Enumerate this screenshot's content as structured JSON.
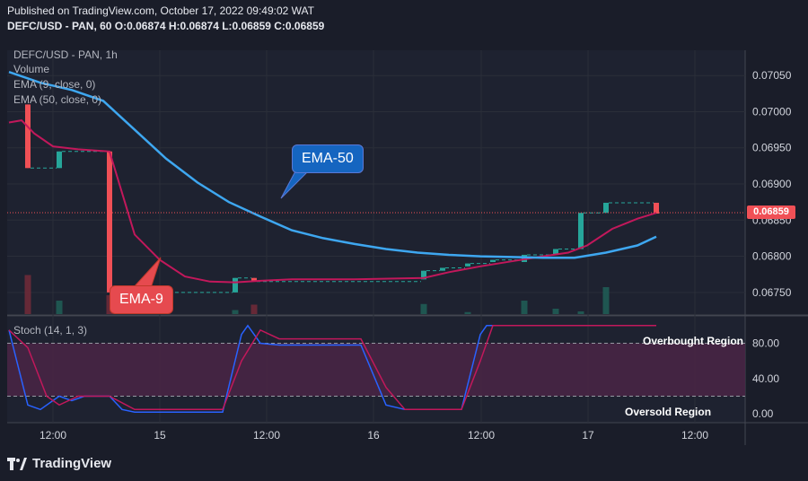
{
  "header": {
    "published": "Published on TradingView.com, October 17, 2022 09:49:02 WAT",
    "ohlc": "DEFC/USD - PAN, 60 O:0.06874 H:0.06874 L:0.06859 C:0.06859"
  },
  "indicators": {
    "symbol": "DEFC/USD - PAN, 1h",
    "volume": "Volume",
    "ema9": "EMA (9, close, 0)",
    "ema50": "EMA (50, close, 0)",
    "stoch": "Stoch (14, 1, 3)"
  },
  "annotations": {
    "ema50": "EMA-50",
    "ema9": "EMA-9",
    "overbought": "Overbought Region",
    "oversold": "Oversold Region"
  },
  "last_price": "0.06859",
  "footer": {
    "brand": "TradingView"
  },
  "colors": {
    "up": "#26a69a",
    "down": "#f05056",
    "ema50": "#3ea7f0",
    "ema9": "#c2185b",
    "stoch_k": "#2962ff",
    "stoch_d": "#c2185b",
    "stoch_band": "#4a2445",
    "background": "#1a1d29"
  },
  "chart_data": [
    {
      "type": "candlestick",
      "ylim": [
        0.0672,
        0.07085
      ],
      "yticks": [
        "0.06750",
        "0.06800",
        "0.06850",
        "0.06900",
        "0.06950",
        "0.07000",
        "0.07050"
      ],
      "xticks": [
        "12:00",
        "15",
        "12:00",
        "16",
        "12:00",
        "17",
        "12:00"
      ],
      "candles": [
        {
          "i": 3,
          "o": 0.0701,
          "h": 0.0701,
          "l": 0.06922,
          "c": 0.06922
        },
        {
          "i": 8,
          "o": 0.06922,
          "h": 0.06945,
          "l": 0.06922,
          "c": 0.06945
        },
        {
          "i": 16,
          "o": 0.06945,
          "h": 0.06945,
          "l": 0.0675,
          "c": 0.0675
        },
        {
          "i": 36,
          "o": 0.0675,
          "h": 0.0677,
          "l": 0.0675,
          "c": 0.0677
        },
        {
          "i": 39,
          "o": 0.0677,
          "h": 0.0677,
          "l": 0.06765,
          "c": 0.06765
        },
        {
          "i": 66,
          "o": 0.06768,
          "h": 0.0678,
          "l": 0.06768,
          "c": 0.0678
        },
        {
          "i": 69,
          "o": 0.0678,
          "h": 0.06784,
          "l": 0.0678,
          "c": 0.06784
        },
        {
          "i": 73,
          "o": 0.06786,
          "h": 0.0679,
          "l": 0.06786,
          "c": 0.0679
        },
        {
          "i": 77,
          "o": 0.06792,
          "h": 0.06795,
          "l": 0.06792,
          "c": 0.06795
        },
        {
          "i": 82,
          "o": 0.06792,
          "h": 0.06802,
          "l": 0.06792,
          "c": 0.06802
        },
        {
          "i": 87,
          "o": 0.06803,
          "h": 0.0681,
          "l": 0.06803,
          "c": 0.0681
        },
        {
          "i": 91,
          "o": 0.0681,
          "h": 0.0686,
          "l": 0.0681,
          "c": 0.0686
        },
        {
          "i": 95,
          "o": 0.0686,
          "h": 0.06874,
          "l": 0.0686,
          "c": 0.06874
        },
        {
          "i": 103,
          "o": 0.06874,
          "h": 0.06874,
          "l": 0.06859,
          "c": 0.06859
        }
      ],
      "ema50": [
        [
          0,
          0.07055
        ],
        [
          5,
          0.0704
        ],
        [
          10,
          0.0703
        ],
        [
          15,
          0.07015
        ],
        [
          20,
          0.06975
        ],
        [
          25,
          0.06935
        ],
        [
          30,
          0.06902
        ],
        [
          35,
          0.06875
        ],
        [
          40,
          0.06855
        ],
        [
          45,
          0.06836
        ],
        [
          50,
          0.06825
        ],
        [
          55,
          0.06817
        ],
        [
          60,
          0.0681
        ],
        [
          65,
          0.06805
        ],
        [
          70,
          0.06802
        ],
        [
          75,
          0.068
        ],
        [
          80,
          0.06799
        ],
        [
          85,
          0.06798
        ],
        [
          90,
          0.06798
        ],
        [
          95,
          0.06805
        ],
        [
          100,
          0.06815
        ],
        [
          103,
          0.06827
        ]
      ],
      "ema9": [
        [
          0,
          0.06985
        ],
        [
          2,
          0.06988
        ],
        [
          4,
          0.0697
        ],
        [
          7,
          0.06952
        ],
        [
          11,
          0.06948
        ],
        [
          16,
          0.06945
        ],
        [
          20,
          0.0683
        ],
        [
          24,
          0.06795
        ],
        [
          28,
          0.06772
        ],
        [
          32,
          0.06765
        ],
        [
          36,
          0.06764
        ],
        [
          40,
          0.06766
        ],
        [
          45,
          0.06768
        ],
        [
          55,
          0.06768
        ],
        [
          66,
          0.0677
        ],
        [
          70,
          0.06778
        ],
        [
          75,
          0.06786
        ],
        [
          80,
          0.06793
        ],
        [
          85,
          0.068
        ],
        [
          89,
          0.06805
        ],
        [
          92,
          0.06815
        ],
        [
          96,
          0.06838
        ],
        [
          100,
          0.06852
        ],
        [
          103,
          0.0686
        ]
      ],
      "volume": [
        {
          "i": 3,
          "v": 0.58,
          "up": false
        },
        {
          "i": 8,
          "v": 0.2,
          "up": true
        },
        {
          "i": 16,
          "v": 0.28,
          "up": false
        },
        {
          "i": 36,
          "v": 0.06,
          "up": true
        },
        {
          "i": 39,
          "v": 0.14,
          "up": false
        },
        {
          "i": 66,
          "v": 0.15,
          "up": true
        },
        {
          "i": 73,
          "v": 0.03,
          "up": true
        },
        {
          "i": 82,
          "v": 0.2,
          "up": true
        },
        {
          "i": 87,
          "v": 0.08,
          "up": true
        },
        {
          "i": 91,
          "v": 0.04,
          "up": true
        },
        {
          "i": 95,
          "v": 0.4,
          "up": true
        }
      ]
    },
    {
      "type": "line",
      "name": "Stoch (14, 1, 3)",
      "ylim": [
        -10,
        110
      ],
      "yticks": [
        "80.00",
        "40.00",
        "0.00"
      ],
      "bands": [
        20,
        80
      ],
      "k": [
        [
          0,
          95
        ],
        [
          3,
          10
        ],
        [
          5,
          5
        ],
        [
          7,
          15
        ],
        [
          8,
          20
        ],
        [
          10,
          15
        ],
        [
          12,
          20
        ],
        [
          16,
          20
        ],
        [
          18,
          5
        ],
        [
          20,
          2
        ],
        [
          34,
          2
        ],
        [
          37,
          90
        ],
        [
          38,
          100
        ],
        [
          40,
          80
        ],
        [
          43,
          78
        ],
        [
          56,
          78
        ],
        [
          60,
          10
        ],
        [
          63,
          5
        ],
        [
          72,
          5
        ],
        [
          75,
          90
        ],
        [
          76,
          100
        ],
        [
          103,
          100
        ]
      ],
      "d": [
        [
          0,
          95
        ],
        [
          3,
          75
        ],
        [
          6,
          20
        ],
        [
          8,
          10
        ],
        [
          11,
          20
        ],
        [
          16,
          20
        ],
        [
          20,
          5
        ],
        [
          34,
          5
        ],
        [
          37,
          60
        ],
        [
          40,
          95
        ],
        [
          43,
          85
        ],
        [
          56,
          85
        ],
        [
          60,
          30
        ],
        [
          63,
          5
        ],
        [
          72,
          5
        ],
        [
          75,
          60
        ],
        [
          77,
          100
        ],
        [
          103,
          100
        ]
      ]
    }
  ]
}
